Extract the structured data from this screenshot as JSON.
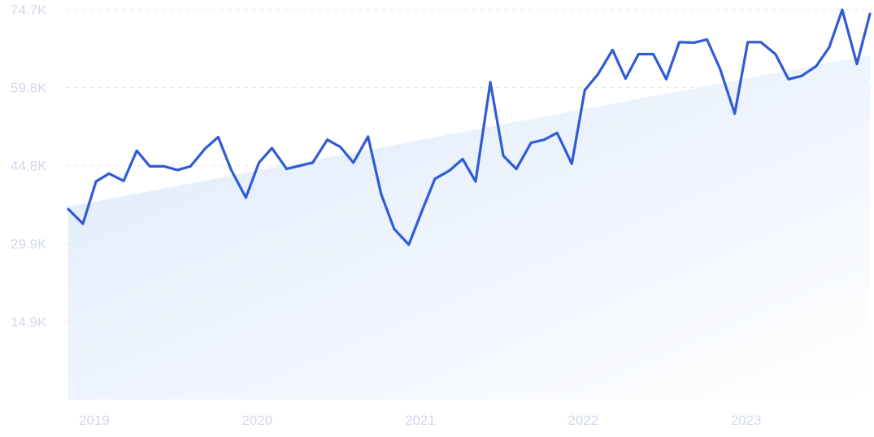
{
  "chart_data": {
    "type": "line",
    "title": "",
    "xlabel": "",
    "ylabel": "",
    "ylim": [
      0,
      74700
    ],
    "grid": true,
    "legend": "none",
    "colors": {
      "line": "#2f5bd6",
      "trend_fill_top": "#dde9fb",
      "trend_fill_bottom": "#ffffff",
      "tick_text": "#d3d8ec",
      "grid": "#e3e7f1"
    },
    "y_ticks": [
      {
        "value": 14900,
        "label": "14.9K"
      },
      {
        "value": 29900,
        "label": "29.9K"
      },
      {
        "value": 44800,
        "label": "44.8K"
      },
      {
        "value": 59800,
        "label": "59.8K"
      },
      {
        "value": 74700,
        "label": "74.7K"
      }
    ],
    "x_ticks": [
      {
        "value": 2019.0,
        "label": "2019"
      },
      {
        "value": 2020.0,
        "label": "2020"
      },
      {
        "value": 2021.0,
        "label": "2021"
      },
      {
        "value": 2022.0,
        "label": "2022"
      },
      {
        "value": 2023.0,
        "label": "2023"
      }
    ],
    "trend": {
      "start": [
        2018.83,
        37000
      ],
      "end": [
        2023.75,
        66000
      ]
    },
    "series": [
      {
        "x": [
          2018.83,
          2018.92,
          2019.0,
          2019.08,
          2019.17,
          2019.25,
          2019.33,
          2019.42,
          2019.5,
          2019.58,
          2019.67,
          2019.75,
          2019.83,
          2019.92,
          2020.0,
          2020.08,
          2020.17,
          2020.25,
          2020.33,
          2020.42,
          2020.5,
          2020.58,
          2020.67,
          2020.75,
          2020.83,
          2020.92,
          2021.0,
          2021.08,
          2021.17,
          2021.25,
          2021.33,
          2021.42,
          2021.5,
          2021.58,
          2021.67,
          2021.75,
          2021.83,
          2021.92,
          2022.0,
          2022.08,
          2022.17,
          2022.25,
          2022.33,
          2022.42,
          2022.5,
          2022.58,
          2022.67,
          2022.75,
          2022.83,
          2022.92,
          2023.0,
          2023.08,
          2023.17,
          2023.25,
          2023.33,
          2023.42,
          2023.5,
          2023.58,
          2023.67,
          2023.75
        ],
        "values": [
          36500,
          33700,
          41800,
          43300,
          41900,
          47700,
          44700,
          44700,
          44000,
          44700,
          48100,
          50300,
          44000,
          38700,
          45400,
          48200,
          44200,
          44800,
          45400,
          49800,
          48400,
          45400,
          50400,
          39400,
          32700,
          29700,
          36100,
          42300,
          43900,
          46100,
          41800,
          60800,
          46700,
          44200,
          49200,
          49800,
          51100,
          45200,
          59300,
          62300,
          67000,
          61500,
          66200,
          66200,
          61400,
          68500,
          68400,
          69000,
          63400,
          54800,
          68500,
          68500,
          66200,
          61400,
          62000,
          63900,
          67500,
          74700,
          64300,
          73900
        ]
      }
    ]
  }
}
